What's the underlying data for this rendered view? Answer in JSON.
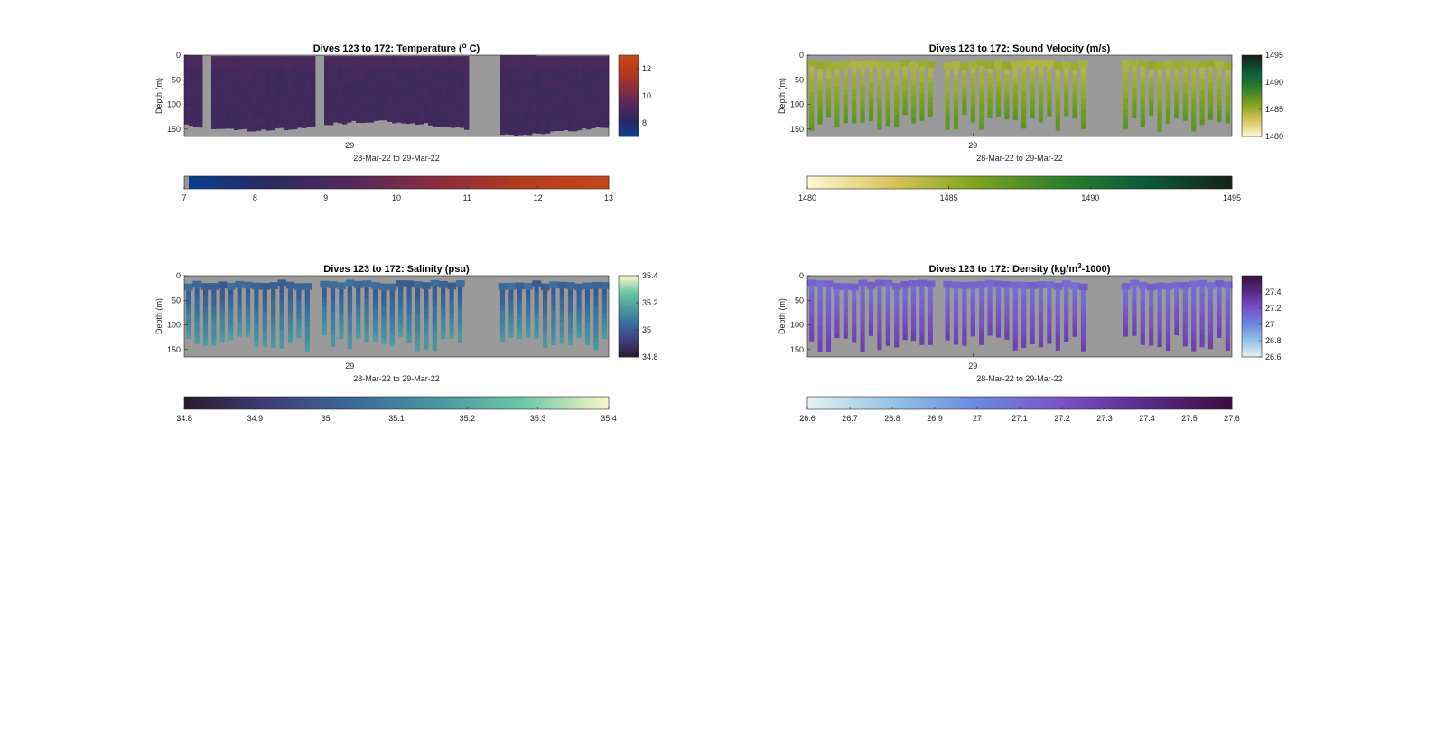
{
  "chart_data": [
    {
      "type": "heatmap",
      "id": "temperature",
      "title": "Dives 123 to 172: Temperature (",
      "title_sup": "o",
      "title_end": " C)",
      "ylabel": "Depth (m)",
      "xlabel": "28-Mar-22 to 29-Mar-22",
      "x_ticks": [
        "29"
      ],
      "y_ticks": [
        0,
        50,
        100,
        150
      ],
      "ylim": [
        0,
        165
      ],
      "y_reversed": true,
      "colormap": [
        "#0b3d91",
        "#2a2a60",
        "#55285a",
        "#8a2d3e",
        "#b83a1c",
        "#c8461a"
      ],
      "clim": [
        7,
        13
      ],
      "colorbar_ticks": [
        "8",
        "10",
        "12"
      ],
      "colorbar_tick_values": [
        8,
        10,
        12
      ],
      "horizontal_colorbar_ticks": [
        "7",
        "8",
        "9",
        "10",
        "11",
        "12",
        "13"
      ],
      "style": "filled",
      "value_range": [
        8.3,
        9.4
      ],
      "gaps": [
        [
          0.04,
          0.06
        ],
        [
          0.3,
          0.32
        ],
        [
          0.66,
          0.74
        ]
      ],
      "background": "#9a9a9a"
    },
    {
      "type": "heatmap",
      "id": "sound-velocity",
      "title": "Dives 123 to 172: Sound Velocity (m/s)",
      "ylabel": "Depth (m)",
      "xlabel": "28-Mar-22 to 29-Mar-22",
      "x_ticks": [
        "29"
      ],
      "y_ticks": [
        0,
        50,
        100,
        150
      ],
      "ylim": [
        0,
        165
      ],
      "y_reversed": true,
      "colormap": [
        "#fdf6cf",
        "#d7c35a",
        "#7ea31e",
        "#2d7f2c",
        "#0b5a3a",
        "#16231a"
      ],
      "clim": [
        1480,
        1495
      ],
      "colorbar_ticks": [
        "1480",
        "1485",
        "1490",
        "1495"
      ],
      "colorbar_tick_values": [
        1480,
        1485,
        1490,
        1495
      ],
      "horizontal_colorbar_ticks": [
        "1480",
        "1485",
        "1490",
        "1495"
      ],
      "style": "bars",
      "value_range": [
        1483.5,
        1487.5
      ],
      "gaps": [
        [
          0.3,
          0.32
        ],
        [
          0.66,
          0.74
        ]
      ],
      "background": "#9a9a9a"
    },
    {
      "type": "heatmap",
      "id": "salinity",
      "title": "Dives 123 to 172: Salinity (psu)",
      "ylabel": "Depth (m)",
      "xlabel": "28-Mar-22 to 29-Mar-22",
      "x_ticks": [
        "29"
      ],
      "y_ticks": [
        0,
        50,
        100,
        150
      ],
      "ylim": [
        0,
        165
      ],
      "y_reversed": true,
      "colormap": [
        "#2a1b2f",
        "#3e3e7a",
        "#3a6a9a",
        "#4a98a0",
        "#6bc7a5",
        "#f7f6c8"
      ],
      "clim": [
        34.8,
        35.4
      ],
      "colorbar_ticks": [
        "34.8",
        "35",
        "35.2",
        "35.4"
      ],
      "colorbar_tick_values": [
        34.8,
        35,
        35.2,
        35.4
      ],
      "horizontal_colorbar_ticks": [
        "34.8",
        "34.9",
        "35",
        "35.1",
        "35.2",
        "35.3",
        "35.4"
      ],
      "style": "bars",
      "value_range": [
        34.95,
        35.18
      ],
      "gaps": [
        [
          0.3,
          0.32
        ],
        [
          0.66,
          0.74
        ]
      ],
      "background": "#9a9a9a"
    },
    {
      "type": "heatmap",
      "id": "density",
      "title": "Dives 123 to 172: Density (kg/m",
      "title_sup": "3",
      "title_end": "-1000)",
      "ylabel": "Depth (m)",
      "xlabel": "28-Mar-22 to 29-Mar-22",
      "x_ticks": [
        "29"
      ],
      "y_ticks": [
        0,
        50,
        100,
        150
      ],
      "ylim": [
        0,
        165
      ],
      "y_reversed": true,
      "colormap": [
        "#e6f1f3",
        "#93c3e6",
        "#6b88e0",
        "#7a52c8",
        "#5a2a8a",
        "#3b0f3f"
      ],
      "clim": [
        26.6,
        27.6
      ],
      "colorbar_ticks": [
        "26.6",
        "26.8",
        "27",
        "27.2",
        "27.4"
      ],
      "colorbar_tick_values": [
        26.6,
        26.8,
        27,
        27.2,
        27.4
      ],
      "horizontal_colorbar_ticks": [
        "26.6",
        "26.7",
        "26.8",
        "26.9",
        "27",
        "27.1",
        "27.2",
        "27.3",
        "27.4",
        "27.5",
        "27.6"
      ],
      "style": "bars",
      "value_range": [
        27.05,
        27.3
      ],
      "gaps": [
        [
          0.3,
          0.32
        ],
        [
          0.66,
          0.74
        ]
      ],
      "background": "#9a9a9a"
    }
  ]
}
